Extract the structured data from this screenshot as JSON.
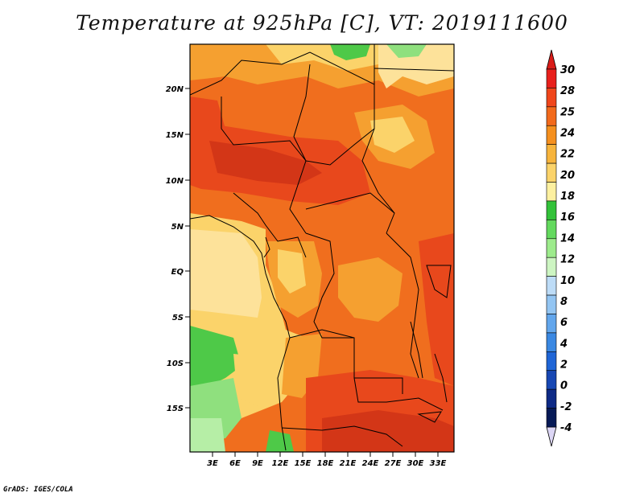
{
  "map": {
    "title": "Temperature at 925hPa [C], VT: 2019111600",
    "footer": "GrADS: IGES/COLA",
    "lat_ticks": [
      "20N",
      "15N",
      "10N",
      "5N",
      "EQ",
      "5S",
      "10S",
      "15S"
    ],
    "lon_ticks": [
      "3E",
      "6E",
      "9E",
      "12E",
      "15E",
      "18E",
      "21E",
      "24E",
      "27E",
      "30E",
      "33E"
    ],
    "colorbar": {
      "labels": [
        "30",
        "28",
        "25",
        "24",
        "22",
        "20",
        "18",
        "16",
        "14",
        "12",
        "10",
        "8",
        "6",
        "4",
        "2",
        "0",
        "-2",
        "-4"
      ],
      "colors": [
        "#e8201c",
        "#f0461b",
        "#f26a1c",
        "#f5901f",
        "#f7b43c",
        "#fbd36a",
        "#fdf0a0",
        "#33c23a",
        "#63d95e",
        "#9deb8c",
        "#cdf5c2",
        "#bddcf7",
        "#93c5f2",
        "#62a6ec",
        "#3a88e2",
        "#1f65d6",
        "#1747b3",
        "#0e2a86",
        "#061a56"
      ],
      "top_color": "#d91c18",
      "bottom_color": "#dcd6f5"
    },
    "colors": {
      "very_hot": "#d33617",
      "hot": "#e8481c",
      "warm": "#f06e1e",
      "mild": "#f5a030",
      "cool": "#fbd36a",
      "cooler": "#fde29a",
      "green": "#4ec948",
      "light_green": "#8fe07e",
      "pale_green": "#b6eea6"
    }
  }
}
